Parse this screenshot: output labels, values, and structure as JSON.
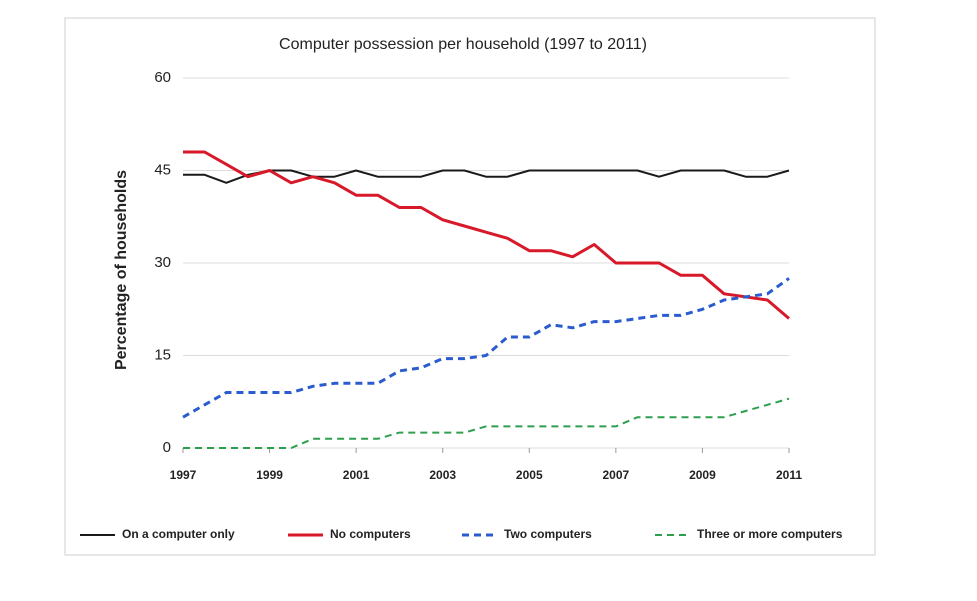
{
  "chart_data": {
    "type": "line",
    "title": "Computer possession per household (1997 to 2011)",
    "y_label": "Percentage of households",
    "x": [
      1997,
      1997.5,
      1998,
      1998.5,
      1999,
      1999.5,
      2000,
      2000.5,
      2001,
      2001.5,
      2002,
      2002.5,
      2003,
      2003.5,
      2004,
      2004.5,
      2005,
      2005.5,
      2006,
      2006.5,
      2007,
      2007.5,
      2008,
      2008.5,
      2009,
      2009.5,
      2010,
      2010.5,
      2011
    ],
    "xlim": [
      1997,
      2011
    ],
    "xticks": [
      1997,
      1999,
      2001,
      2003,
      2005,
      2007,
      2009,
      2011
    ],
    "ylim": [
      0,
      60
    ],
    "yticks": [
      0,
      15,
      30,
      45,
      60
    ],
    "grid": true,
    "legend": "bottom",
    "series": [
      {
        "name": "On a computer only",
        "color": "#1a1a1a",
        "dashed": false,
        "line_width": 2,
        "values": [
          44.3,
          44.3,
          43,
          44.3,
          45,
          45,
          44,
          44,
          45,
          44,
          44,
          44,
          45,
          45,
          44,
          44,
          45,
          45,
          45,
          45,
          45,
          45,
          44,
          45,
          45,
          45,
          44,
          44,
          45
        ]
      },
      {
        "name": "No computers",
        "color": "#d7192a",
        "dashed": false,
        "line_width": 3,
        "values": [
          48,
          48,
          46,
          44,
          45,
          43,
          44,
          43,
          41,
          41,
          39,
          39,
          37,
          36,
          35,
          34,
          32,
          32,
          31,
          33,
          30,
          30,
          30,
          28,
          28,
          25,
          24.5,
          24,
          21
        ]
      },
      {
        "name": "Two computers",
        "color": "#2a5ccf",
        "dashed": true,
        "line_width": 3,
        "values": [
          5,
          7,
          9,
          9,
          9,
          9,
          10,
          10.5,
          10.5,
          10.5,
          12.5,
          13,
          14.5,
          14.5,
          15,
          18,
          18,
          20,
          19.5,
          20.5,
          20.5,
          21,
          21.5,
          21.5,
          22.5,
          24,
          24.5,
          25,
          27.5
        ]
      },
      {
        "name": "Three or more computers",
        "color": "#2e9e4f",
        "dashed": true,
        "line_width": 2,
        "values": [
          0,
          0,
          0,
          0,
          0,
          0,
          1.5,
          1.5,
          1.5,
          1.5,
          2.5,
          2.5,
          2.5,
          2.5,
          3.5,
          3.5,
          3.5,
          3.5,
          3.5,
          3.5,
          3.5,
          5,
          5,
          5,
          5,
          5,
          6,
          7,
          8
        ]
      }
    ]
  }
}
